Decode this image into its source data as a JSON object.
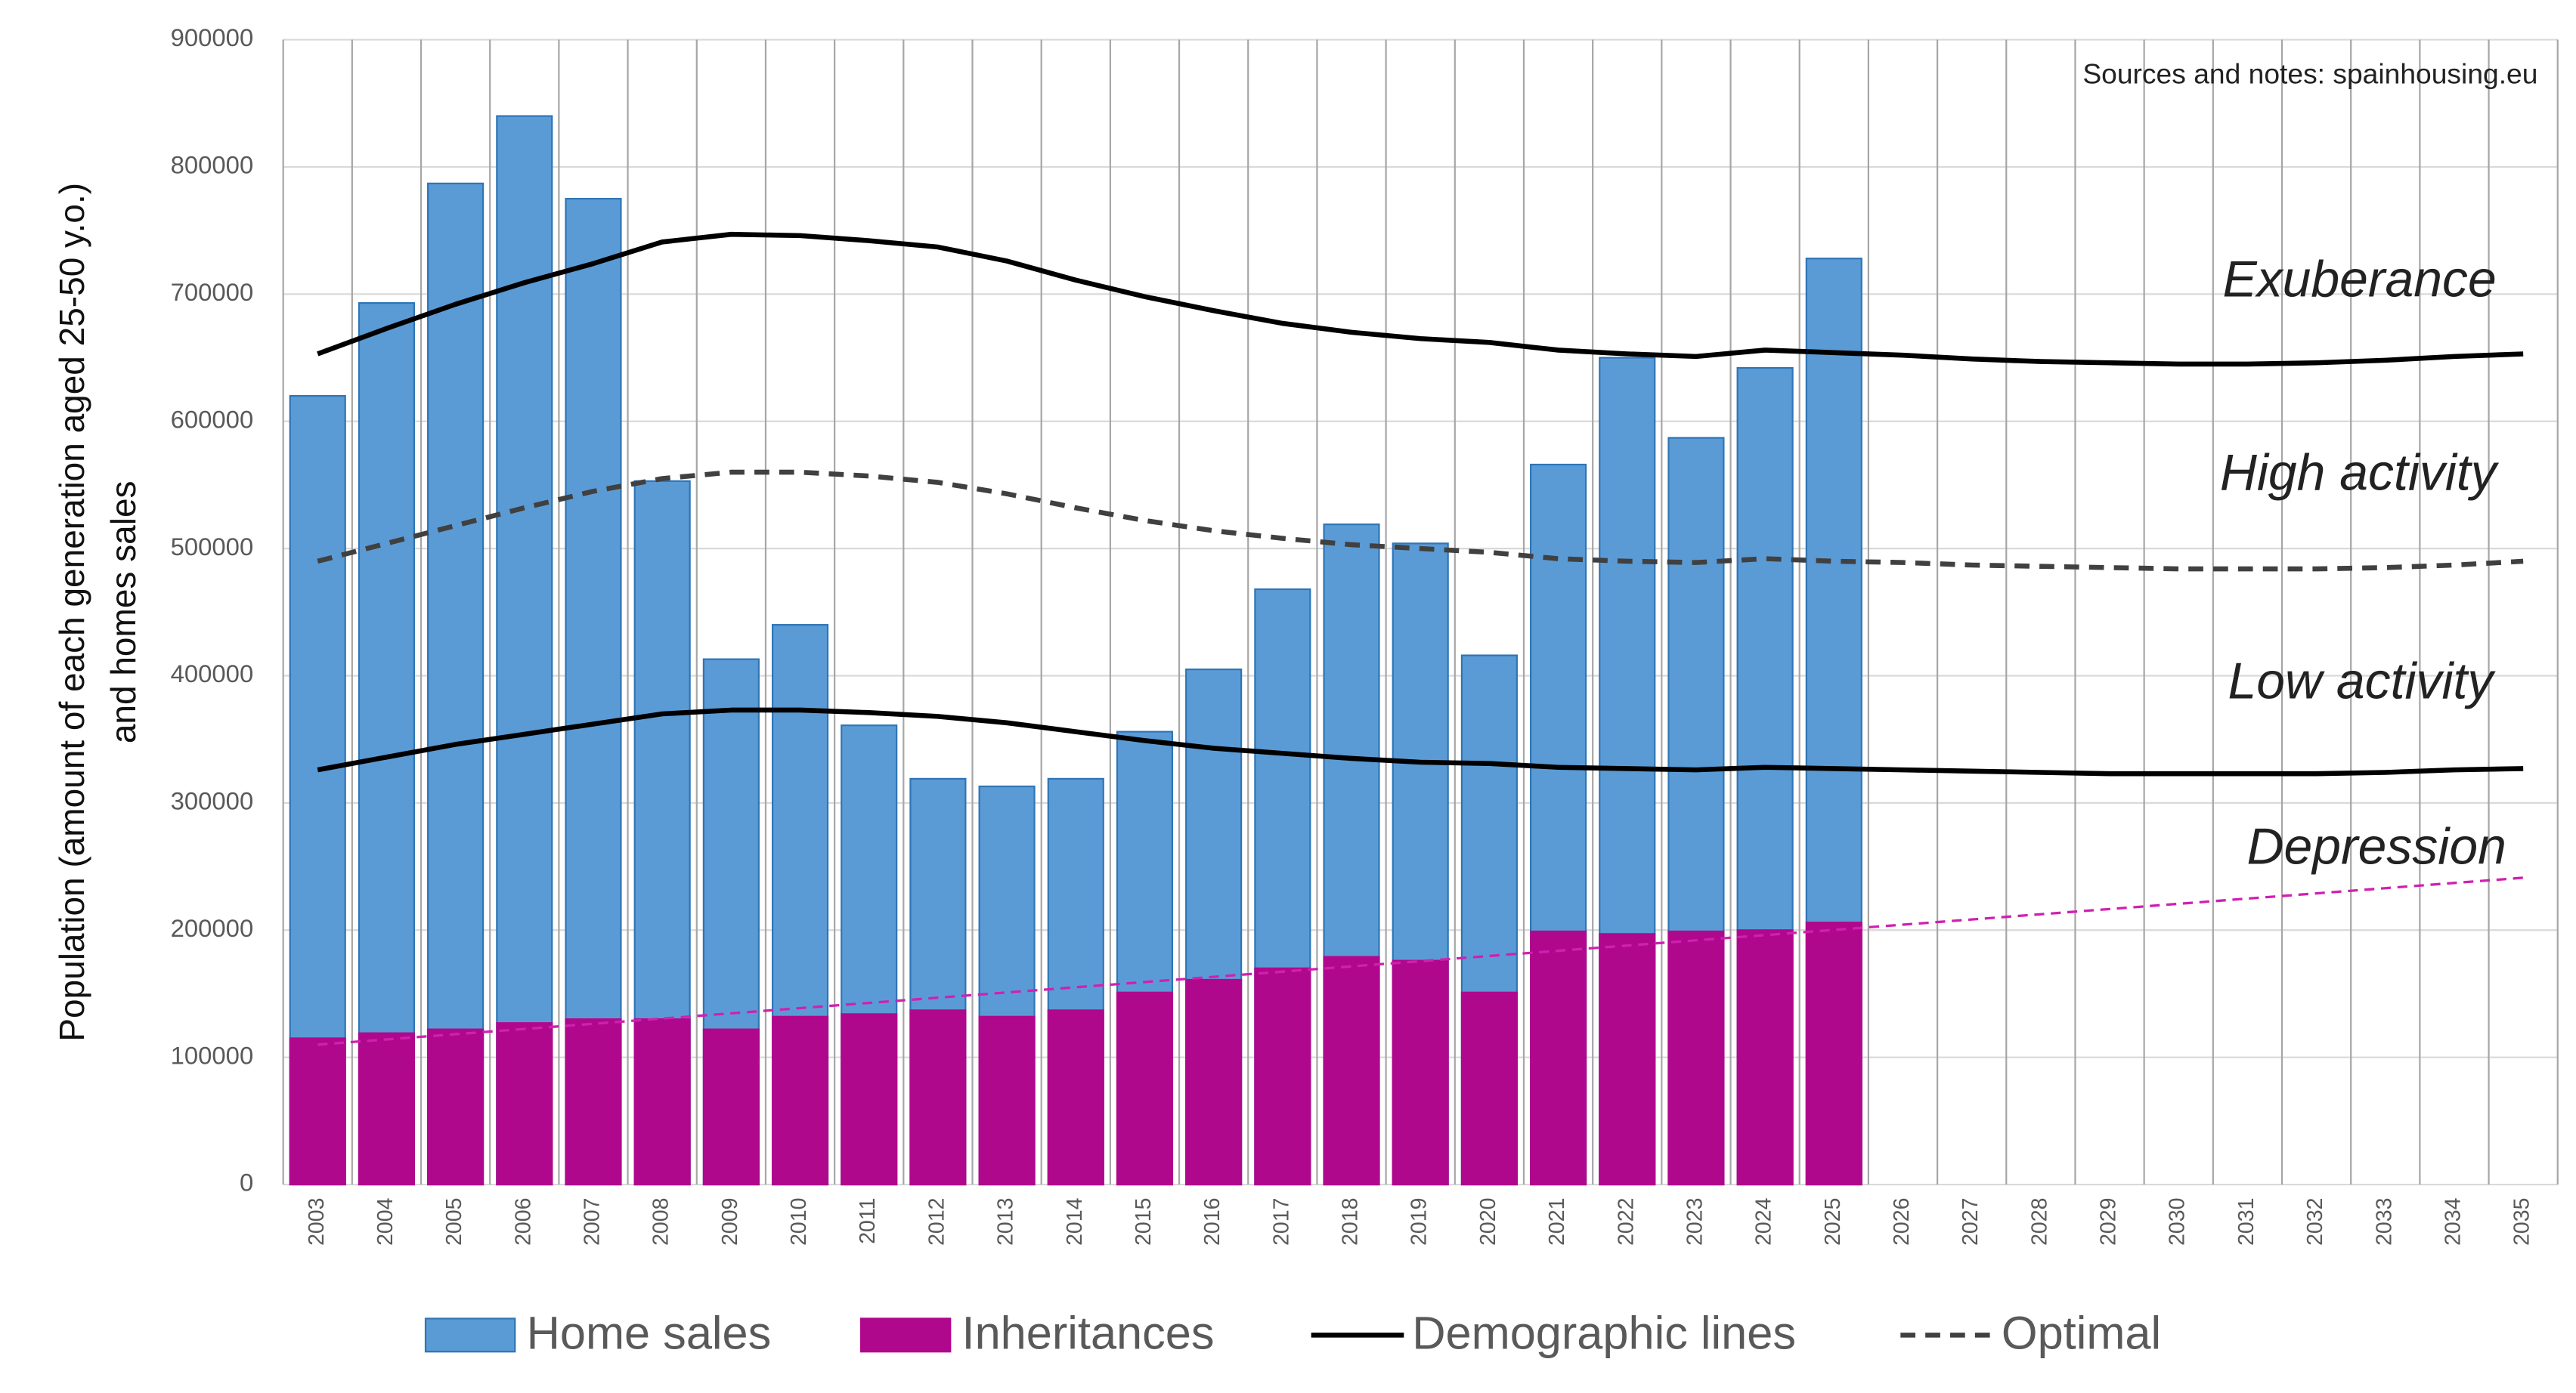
{
  "chart_data": {
    "type": "bar",
    "y_label": [
      "Population (amount of each generation aged 25-50 y.o.)",
      "and homes sales"
    ],
    "source_note": "Sources and notes: spainhousing.eu",
    "zone_labels": [
      "Exuberance",
      "High activity",
      "Low activity",
      "Depression"
    ],
    "categories": [
      "2003",
      "2004",
      "2005",
      "2006",
      "2007",
      "2008",
      "2009",
      "2010",
      "2011",
      "2012",
      "2013",
      "2014",
      "2015",
      "2016",
      "2017",
      "2018",
      "2019",
      "2020",
      "2021",
      "2022",
      "2023",
      "2024",
      "2025",
      "2026",
      "2027",
      "2028",
      "2029",
      "2030",
      "2031",
      "2032",
      "2033",
      "2034",
      "2035"
    ],
    "ylim": [
      0,
      900000
    ],
    "yticks": [
      0,
      100000,
      200000,
      300000,
      400000,
      500000,
      600000,
      700000,
      800000,
      900000
    ],
    "grid": true,
    "legend": "bottom",
    "series": [
      {
        "name": "Home sales",
        "type": "bar",
        "color": "#5b9bd5",
        "values": [
          620000,
          693000,
          787000,
          840000,
          775000,
          553000,
          413000,
          440000,
          361000,
          319000,
          313000,
          319000,
          356000,
          405000,
          468000,
          519000,
          504000,
          416000,
          566000,
          650000,
          587000,
          642000,
          728000,
          null,
          null,
          null,
          null,
          null,
          null,
          null,
          null,
          null,
          null
        ]
      },
      {
        "name": "Inheritances",
        "type": "bar",
        "color": "#b0088c",
        "values": [
          115000,
          119000,
          122000,
          127000,
          130000,
          130000,
          122000,
          132000,
          134000,
          137000,
          132000,
          137000,
          151000,
          161000,
          170000,
          179000,
          176000,
          151000,
          199000,
          197000,
          199000,
          200000,
          206000,
          null,
          null,
          null,
          null,
          null,
          null,
          null,
          null,
          null,
          null
        ]
      },
      {
        "name": "Demographic lines",
        "type": "line",
        "color": "#000000",
        "dash": false,
        "values": [
          653000,
          673000,
          692000,
          709000,
          724000,
          741000,
          747000,
          746000,
          742000,
          737000,
          726000,
          711000,
          698000,
          687000,
          677000,
          670000,
          665000,
          662000,
          656000,
          653000,
          651000,
          656000,
          654000,
          652000,
          649000,
          647000,
          646000,
          645000,
          645000,
          646000,
          648000,
          651000,
          653000
        ]
      },
      {
        "type": "line",
        "color": "#000000",
        "dash": false,
        "values": [
          326000,
          336000,
          346000,
          354000,
          362000,
          370000,
          373000,
          373000,
          371000,
          368000,
          363000,
          356000,
          349000,
          343000,
          339000,
          335000,
          332000,
          331000,
          328000,
          327000,
          326000,
          328000,
          327000,
          326000,
          325000,
          324000,
          323000,
          323000,
          323000,
          323000,
          324000,
          326000,
          327000
        ]
      },
      {
        "name": "Optimal",
        "type": "line",
        "color": "#404040",
        "dash": true,
        "values": [
          490000,
          504000,
          518000,
          532000,
          545000,
          555000,
          560000,
          560000,
          557000,
          552000,
          543000,
          532000,
          522000,
          514000,
          508000,
          503000,
          500000,
          497000,
          492000,
          490000,
          489000,
          492000,
          490000,
          489000,
          487000,
          486000,
          485000,
          484000,
          484000,
          484000,
          485000,
          487000,
          490000
        ]
      },
      {
        "type": "line",
        "color": "#d020b0",
        "dash": true,
        "thin": true,
        "values": [
          110000,
          114100,
          118200,
          122300,
          126400,
          130500,
          134600,
          138700,
          142800,
          146900,
          151000,
          155100,
          159200,
          163300,
          167400,
          171500,
          175600,
          179700,
          183800,
          187900,
          192000,
          196100,
          200200,
          204300,
          208400,
          212500,
          216600,
          220700,
          224800,
          228900,
          233000,
          237100,
          241200
        ]
      }
    ]
  }
}
